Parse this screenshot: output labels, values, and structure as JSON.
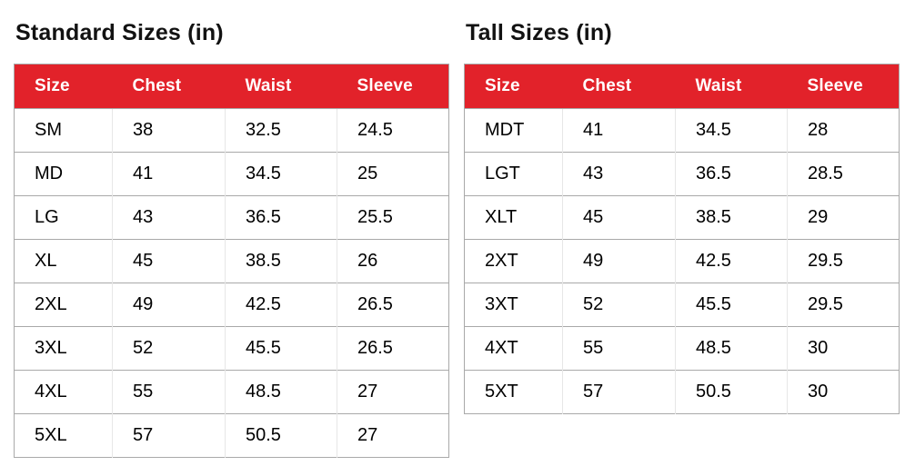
{
  "colors": {
    "header_bg": "#e2222a",
    "header_text": "#ffffff",
    "body_text": "#000000",
    "row_border": "#a9a9a9",
    "col_border": "#e7e7e7",
    "title_color": "#121212"
  },
  "chart_data": [
    {
      "type": "table",
      "title": "Standard Sizes (in)",
      "columns": [
        "Size",
        "Chest",
        "Waist",
        "Sleeve"
      ],
      "rows": [
        [
          "SM",
          "38",
          "32.5",
          "24.5"
        ],
        [
          "MD",
          "41",
          "34.5",
          "25"
        ],
        [
          "LG",
          "43",
          "36.5",
          "25.5"
        ],
        [
          "XL",
          "45",
          "38.5",
          "26"
        ],
        [
          "2XL",
          "49",
          "42.5",
          "26.5"
        ],
        [
          "3XL",
          "52",
          "45.5",
          "26.5"
        ],
        [
          "4XL",
          "55",
          "48.5",
          "27"
        ],
        [
          "5XL",
          "57",
          "50.5",
          "27"
        ]
      ]
    },
    {
      "type": "table",
      "title": "Tall Sizes (in)",
      "columns": [
        "Size",
        "Chest",
        "Waist",
        "Sleeve"
      ],
      "rows": [
        [
          "MDT",
          "41",
          "34.5",
          "28"
        ],
        [
          "LGT",
          "43",
          "36.5",
          "28.5"
        ],
        [
          "XLT",
          "45",
          "38.5",
          "29"
        ],
        [
          "2XT",
          "49",
          "42.5",
          "29.5"
        ],
        [
          "3XT",
          "52",
          "45.5",
          "29.5"
        ],
        [
          "4XT",
          "55",
          "48.5",
          "30"
        ],
        [
          "5XT",
          "57",
          "50.5",
          "30"
        ]
      ]
    }
  ]
}
